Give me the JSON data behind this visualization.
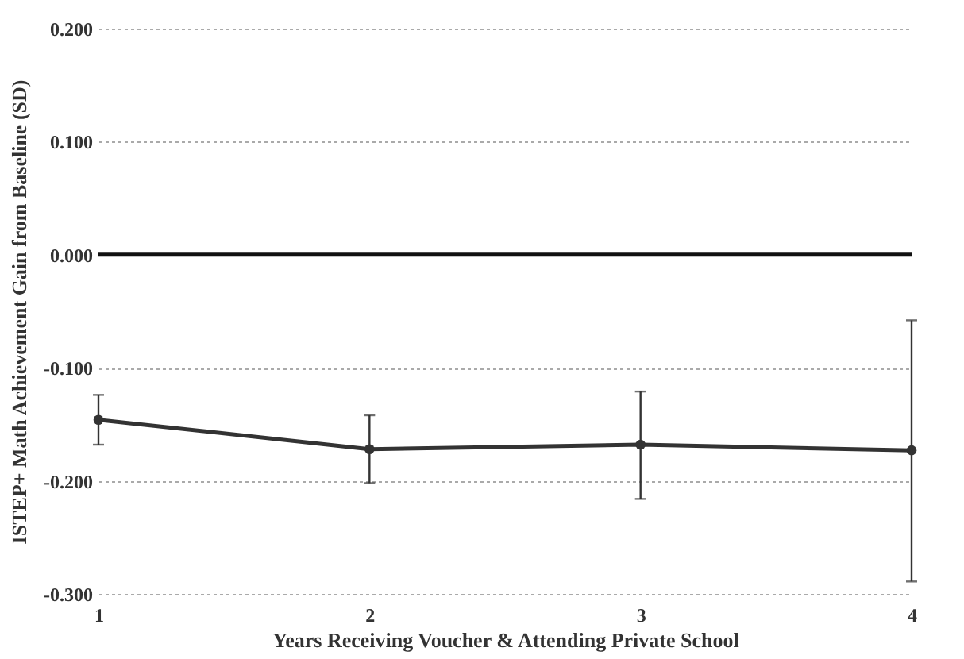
{
  "chart_data": {
    "type": "line",
    "xlabel": "Years Receiving Voucher & Attending  Private School",
    "ylabel": "ISTEP+ Math Achievement Gain from Baseline (SD)",
    "categories": [
      "1",
      "2",
      "3",
      "4"
    ],
    "series": [
      {
        "color": "#333333",
        "values": [
          -0.146,
          -0.172,
          -0.168,
          -0.173
        ],
        "errors": [
          [
            -0.168,
            -0.124
          ],
          [
            -0.202,
            -0.142
          ],
          [
            -0.216,
            -0.121
          ],
          [
            -0.289,
            -0.058
          ]
        ]
      }
    ],
    "ylim": [
      -0.3,
      0.2
    ],
    "yticks": [
      {
        "value": -0.3,
        "label": "-0.300"
      },
      {
        "value": -0.2,
        "label": "-0.200"
      },
      {
        "value": -0.1,
        "label": "-0.100"
      },
      {
        "value": 0,
        "label": "0.000"
      },
      {
        "value": 0.1,
        "label": "0.100"
      },
      {
        "value": 0.2,
        "label": "0.200"
      }
    ],
    "ref_lines": [
      {
        "axis": "y",
        "value": 0,
        "color": "#111111"
      }
    ],
    "grid": "y",
    "marker": "circle",
    "line_style": "solid"
  }
}
